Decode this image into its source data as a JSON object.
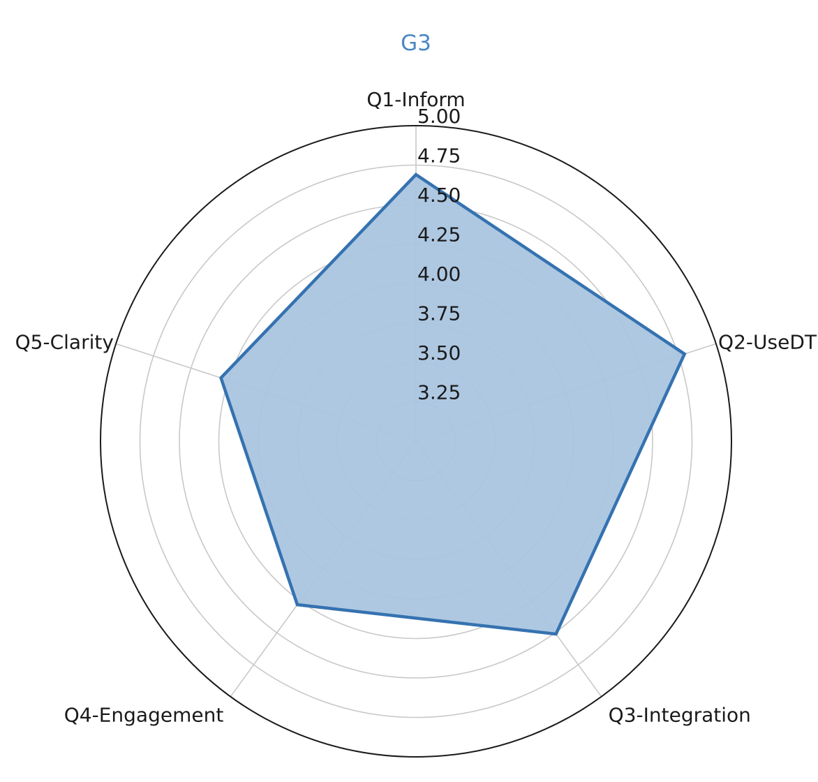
{
  "chart_data": {
    "type": "radar",
    "title": "G3",
    "categories": [
      "Q1-Inform",
      "Q2-UseDT",
      "Q3-Integration",
      "Q4-Engagement",
      "Q5-Clarity"
    ],
    "series": [
      {
        "values": [
          4.69,
          4.79,
          4.51,
          4.28,
          4.3
        ]
      }
    ],
    "rlim": [
      3.0,
      5.0
    ],
    "r_ticks": [
      "3.25",
      "3.50",
      "3.75",
      "4.00",
      "4.25",
      "4.50",
      "4.75",
      "5.00"
    ],
    "r_tick_values": [
      3.25,
      3.5,
      3.75,
      4.0,
      4.25,
      4.5,
      4.75,
      5.0
    ],
    "grid": true,
    "colors": {
      "title": "#4a86c5",
      "line": "#3572b0",
      "fill": "#aac5e0",
      "grid": "#c8c8c8",
      "outer": "#1a1a1a"
    }
  }
}
